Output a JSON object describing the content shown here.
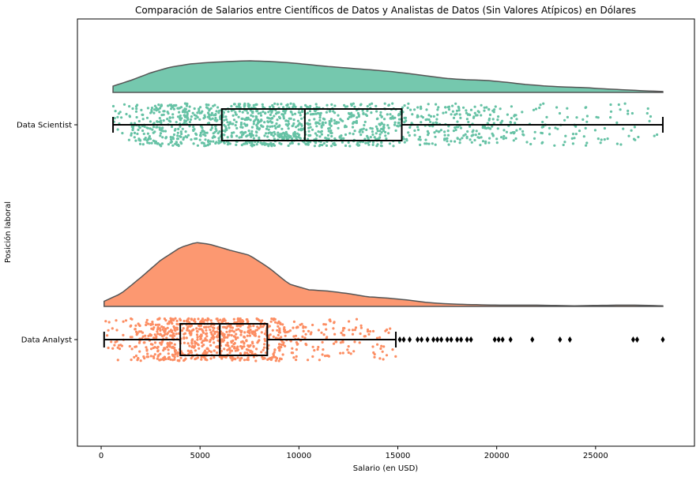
{
  "chart_data": {
    "type": "raincloud",
    "title": "Comparación de Salarios entre Científicos de Datos y Analistas de Datos (Sin Valores Atípicos) en Dólares",
    "xlabel": "Salario (en USD)",
    "ylabel": "Posición laboral",
    "xlim": [
      -1200,
      30000
    ],
    "xticks": [
      0,
      5000,
      10000,
      15000,
      20000,
      25000
    ],
    "xtick_labels": [
      "0",
      "5000",
      "10000",
      "15000",
      "20000",
      "25000"
    ],
    "categories": [
      "Data Scientist",
      "Data Analyst"
    ],
    "grid": false,
    "legend": "none",
    "series": [
      {
        "category": "Data Scientist",
        "color": "#66c2a5",
        "box": {
          "whisker_low": 600,
          "q1": 6100,
          "median": 10300,
          "q3": 15200,
          "whisker_high": 28400
        },
        "outliers": [],
        "density": {
          "x": [
            600,
            1500,
            2500,
            3500,
            4500,
            5500,
            6500,
            7500,
            8500,
            9500,
            10500,
            11500,
            12500,
            13500,
            14500,
            15500,
            16500,
            17500,
            18500,
            19500,
            20500,
            21500,
            22500,
            23500,
            24500,
            25500,
            26500,
            27500,
            28400
          ],
          "y": [
            0.2,
            0.38,
            0.62,
            0.8,
            0.9,
            0.95,
            0.98,
            1.0,
            0.98,
            0.94,
            0.88,
            0.82,
            0.77,
            0.72,
            0.67,
            0.6,
            0.52,
            0.44,
            0.4,
            0.38,
            0.32,
            0.25,
            0.2,
            0.17,
            0.15,
            0.11,
            0.08,
            0.05,
            0.03
          ]
        },
        "points_count": 1400
      },
      {
        "category": "Data Analyst",
        "color": "#fc8d62",
        "box": {
          "whisker_low": 150,
          "q1": 4000,
          "median": 6000,
          "q3": 8400,
          "whisker_high": 14900
        },
        "outliers": [
          15100,
          15300,
          15600,
          16000,
          16200,
          16500,
          16800,
          17000,
          17200,
          17500,
          17700,
          18000,
          18200,
          18500,
          18700,
          19900,
          20100,
          20300,
          20700,
          21800,
          23200,
          23700,
          26900,
          27100,
          28400
        ],
        "density": {
          "x": [
            150,
            1000,
            2000,
            3000,
            4000,
            4800,
            5500,
            6500,
            7500,
            8500,
            9500,
            10500,
            11500,
            12500,
            13500,
            14500,
            15500,
            16500,
            17500,
            18500,
            20000,
            22000,
            24000,
            26000,
            27000,
            28400
          ],
          "y": [
            0.08,
            0.2,
            0.45,
            0.72,
            0.92,
            1.0,
            0.97,
            0.88,
            0.8,
            0.6,
            0.35,
            0.26,
            0.24,
            0.2,
            0.15,
            0.13,
            0.1,
            0.06,
            0.04,
            0.03,
            0.02,
            0.02,
            0.01,
            0.02,
            0.02,
            0.01
          ]
        },
        "points_count": 900
      }
    ]
  }
}
